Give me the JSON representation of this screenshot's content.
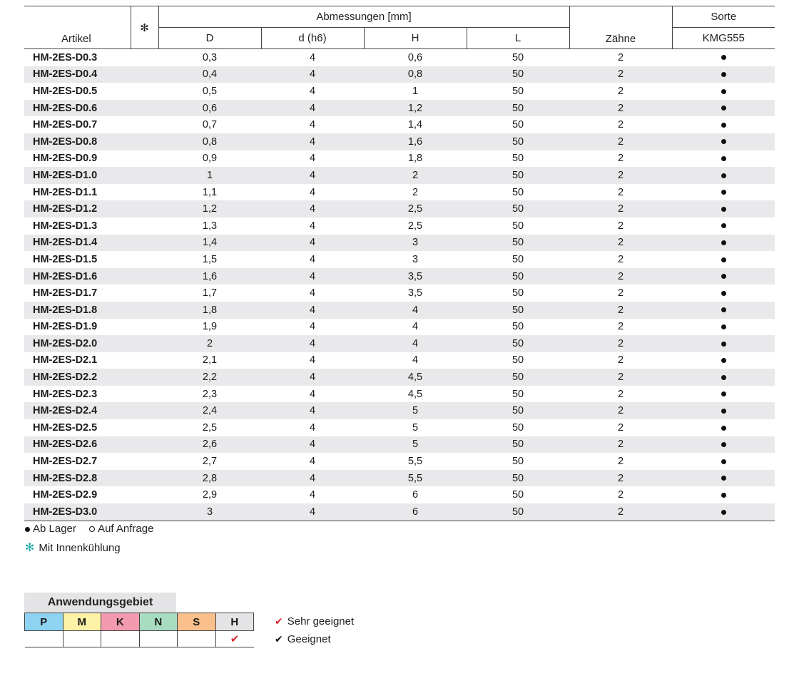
{
  "table": {
    "header": {
      "artikel": "Artikel",
      "cooling_icon": "snowflake-icon",
      "abmessungen": "Abmessungen [mm]",
      "D": "D",
      "d": "d (h6)",
      "H": "H",
      "L": "L",
      "zaehne": "Zähne",
      "sorte": "Sorte",
      "kmg": "KMG555"
    },
    "rows": [
      {
        "artikel": "HM-2ES-D0.3",
        "D": "0,3",
        "d": "4",
        "H": "0,6",
        "L": "50",
        "z": "2",
        "stock": "in-stock"
      },
      {
        "artikel": "HM-2ES-D0.4",
        "D": "0,4",
        "d": "4",
        "H": "0,8",
        "L": "50",
        "z": "2",
        "stock": "in-stock"
      },
      {
        "artikel": "HM-2ES-D0.5",
        "D": "0,5",
        "d": "4",
        "H": "1",
        "L": "50",
        "z": "2",
        "stock": "in-stock"
      },
      {
        "artikel": "HM-2ES-D0.6",
        "D": "0,6",
        "d": "4",
        "H": "1,2",
        "L": "50",
        "z": "2",
        "stock": "in-stock"
      },
      {
        "artikel": "HM-2ES-D0.7",
        "D": "0,7",
        "d": "4",
        "H": "1,4",
        "L": "50",
        "z": "2",
        "stock": "in-stock"
      },
      {
        "artikel": "HM-2ES-D0.8",
        "D": "0,8",
        "d": "4",
        "H": "1,6",
        "L": "50",
        "z": "2",
        "stock": "in-stock"
      },
      {
        "artikel": "HM-2ES-D0.9",
        "D": "0,9",
        "d": "4",
        "H": "1,8",
        "L": "50",
        "z": "2",
        "stock": "in-stock"
      },
      {
        "artikel": "HM-2ES-D1.0",
        "D": "1",
        "d": "4",
        "H": "2",
        "L": "50",
        "z": "2",
        "stock": "in-stock"
      },
      {
        "artikel": "HM-2ES-D1.1",
        "D": "1,1",
        "d": "4",
        "H": "2",
        "L": "50",
        "z": "2",
        "stock": "in-stock"
      },
      {
        "artikel": "HM-2ES-D1.2",
        "D": "1,2",
        "d": "4",
        "H": "2,5",
        "L": "50",
        "z": "2",
        "stock": "in-stock"
      },
      {
        "artikel": "HM-2ES-D1.3",
        "D": "1,3",
        "d": "4",
        "H": "2,5",
        "L": "50",
        "z": "2",
        "stock": "in-stock"
      },
      {
        "artikel": "HM-2ES-D1.4",
        "D": "1,4",
        "d": "4",
        "H": "3",
        "L": "50",
        "z": "2",
        "stock": "in-stock"
      },
      {
        "artikel": "HM-2ES-D1.5",
        "D": "1,5",
        "d": "4",
        "H": "3",
        "L": "50",
        "z": "2",
        "stock": "in-stock"
      },
      {
        "artikel": "HM-2ES-D1.6",
        "D": "1,6",
        "d": "4",
        "H": "3,5",
        "L": "50",
        "z": "2",
        "stock": "in-stock"
      },
      {
        "artikel": "HM-2ES-D1.7",
        "D": "1,7",
        "d": "4",
        "H": "3,5",
        "L": "50",
        "z": "2",
        "stock": "in-stock"
      },
      {
        "artikel": "HM-2ES-D1.8",
        "D": "1,8",
        "d": "4",
        "H": "4",
        "L": "50",
        "z": "2",
        "stock": "in-stock"
      },
      {
        "artikel": "HM-2ES-D1.9",
        "D": "1,9",
        "d": "4",
        "H": "4",
        "L": "50",
        "z": "2",
        "stock": "in-stock"
      },
      {
        "artikel": "HM-2ES-D2.0",
        "D": "2",
        "d": "4",
        "H": "4",
        "L": "50",
        "z": "2",
        "stock": "in-stock"
      },
      {
        "artikel": "HM-2ES-D2.1",
        "D": "2,1",
        "d": "4",
        "H": "4",
        "L": "50",
        "z": "2",
        "stock": "in-stock"
      },
      {
        "artikel": "HM-2ES-D2.2",
        "D": "2,2",
        "d": "4",
        "H": "4,5",
        "L": "50",
        "z": "2",
        "stock": "in-stock"
      },
      {
        "artikel": "HM-2ES-D2.3",
        "D": "2,3",
        "d": "4",
        "H": "4,5",
        "L": "50",
        "z": "2",
        "stock": "in-stock"
      },
      {
        "artikel": "HM-2ES-D2.4",
        "D": "2,4",
        "d": "4",
        "H": "5",
        "L": "50",
        "z": "2",
        "stock": "in-stock"
      },
      {
        "artikel": "HM-2ES-D2.5",
        "D": "2,5",
        "d": "4",
        "H": "5",
        "L": "50",
        "z": "2",
        "stock": "in-stock"
      },
      {
        "artikel": "HM-2ES-D2.6",
        "D": "2,6",
        "d": "4",
        "H": "5",
        "L": "50",
        "z": "2",
        "stock": "in-stock"
      },
      {
        "artikel": "HM-2ES-D2.7",
        "D": "2,7",
        "d": "4",
        "H": "5,5",
        "L": "50",
        "z": "2",
        "stock": "in-stock"
      },
      {
        "artikel": "HM-2ES-D2.8",
        "D": "2,8",
        "d": "4",
        "H": "5,5",
        "L": "50",
        "z": "2",
        "stock": "in-stock"
      },
      {
        "artikel": "HM-2ES-D2.9",
        "D": "2,9",
        "d": "4",
        "H": "6",
        "L": "50",
        "z": "2",
        "stock": "in-stock"
      },
      {
        "artikel": "HM-2ES-D3.0",
        "D": "3",
        "d": "4",
        "H": "6",
        "L": "50",
        "z": "2",
        "stock": "in-stock"
      }
    ]
  },
  "legend": {
    "ab_lager": "Ab Lager",
    "auf_anfrage": "Auf Anfrage",
    "innenkuehlung": "Mit Innenkühlung"
  },
  "anwendung": {
    "title": "Anwendungsgebiet",
    "groups": [
      {
        "label": "P",
        "color": "#8fd3f2",
        "mark": ""
      },
      {
        "label": "M",
        "color": "#fdf2a6",
        "mark": ""
      },
      {
        "label": "K",
        "color": "#f49ab0",
        "mark": ""
      },
      {
        "label": "N",
        "color": "#a8dcc0",
        "mark": ""
      },
      {
        "label": "S",
        "color": "#f9c08c",
        "mark": ""
      },
      {
        "label": "H",
        "color": "#e4e4e6",
        "mark": "sehr"
      }
    ],
    "rating_sehr": "Sehr geeignet",
    "rating_geeignet": "Geeignet",
    "check_red_color": "#d9262e",
    "check_black_color": "#111111"
  }
}
